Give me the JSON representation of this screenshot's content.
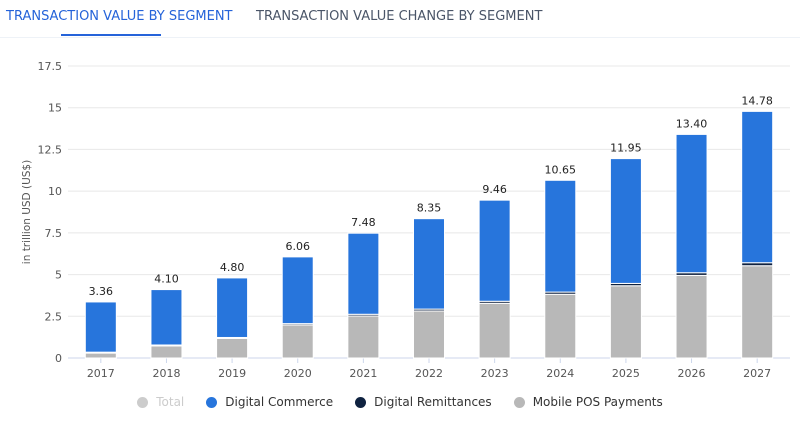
{
  "tabs": [
    {
      "label": "TRANSACTION VALUE BY SEGMENT",
      "active": true
    },
    {
      "label": "TRANSACTION VALUE CHANGE BY SEGMENT",
      "active": false
    }
  ],
  "chart_data": {
    "type": "bar",
    "stacked": true,
    "ylabel": "in trillion USD (US$)",
    "ylim": [
      0,
      17.5
    ],
    "yticks": [
      "0",
      "2.5",
      "5",
      "7.5",
      "10",
      "12.5",
      "15",
      "17.5"
    ],
    "grid": true,
    "legend_position": "bottom",
    "categories": [
      "2017",
      "2018",
      "2019",
      "2020",
      "2021",
      "2022",
      "2023",
      "2024",
      "2025",
      "2026",
      "2027"
    ],
    "totals": [
      "3.36",
      "4.10",
      "4.80",
      "6.06",
      "7.48",
      "8.35",
      "9.46",
      "10.65",
      "11.95",
      "13.40",
      "14.78"
    ],
    "series": [
      {
        "name": "Mobile POS Payments",
        "color": "#b8b8b8",
        "values": [
          0.32,
          0.74,
          1.18,
          1.98,
          2.52,
          2.82,
          3.28,
          3.82,
          4.33,
          4.95,
          5.53
        ]
      },
      {
        "name": "Digital Remittances",
        "color": "#0f2240",
        "values": [
          0.03,
          0.04,
          0.05,
          0.08,
          0.1,
          0.11,
          0.12,
          0.13,
          0.14,
          0.16,
          0.18
        ]
      },
      {
        "name": "Digital Commerce",
        "color": "#2775dc",
        "values": [
          3.01,
          3.32,
          3.57,
          4.0,
          4.86,
          5.42,
          6.06,
          6.7,
          7.48,
          8.29,
          9.07
        ]
      }
    ],
    "legend": [
      {
        "name": "Total",
        "color": "#cccccc",
        "muted": true
      },
      {
        "name": "Digital Commerce",
        "color": "#2775dc"
      },
      {
        "name": "Digital Remittances",
        "color": "#0f2240"
      },
      {
        "name": "Mobile POS Payments",
        "color": "#b8b8b8"
      }
    ]
  }
}
